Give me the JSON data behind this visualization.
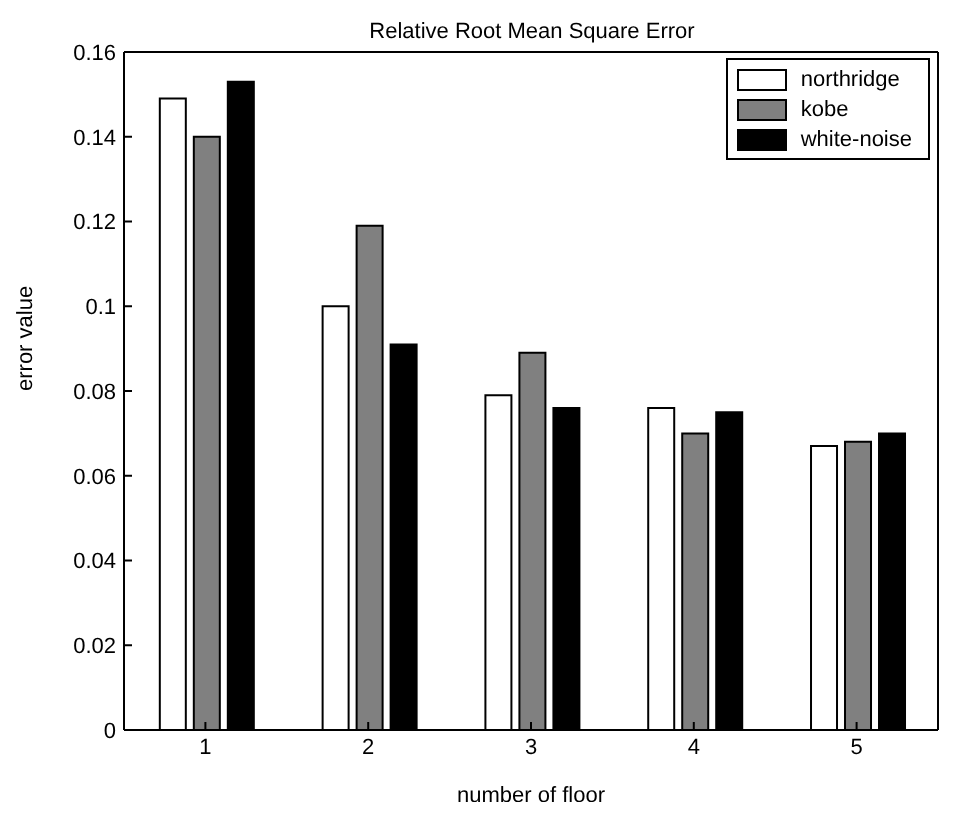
{
  "chart_data": {
    "type": "bar",
    "title": "Relative Root Mean Square Error",
    "xlabel": "number of floor",
    "ylabel": "error value",
    "categories": [
      "1",
      "2",
      "3",
      "4",
      "5"
    ],
    "series": [
      {
        "name": "northridge",
        "color": "#ffffff",
        "values": [
          0.149,
          0.1,
          0.079,
          0.076,
          0.067
        ]
      },
      {
        "name": "kobe",
        "color": "#808080",
        "values": [
          0.14,
          0.119,
          0.089,
          0.07,
          0.068
        ]
      },
      {
        "name": "white-noise",
        "color": "#000000",
        "values": [
          0.153,
          0.091,
          0.076,
          0.075,
          0.07
        ]
      }
    ],
    "ylim": [
      0,
      0.16
    ],
    "yticks": [
      0,
      0.02,
      0.04,
      0.06,
      0.08,
      0.1,
      0.12,
      0.14,
      0.16
    ],
    "grid": false,
    "legend": "top right"
  }
}
